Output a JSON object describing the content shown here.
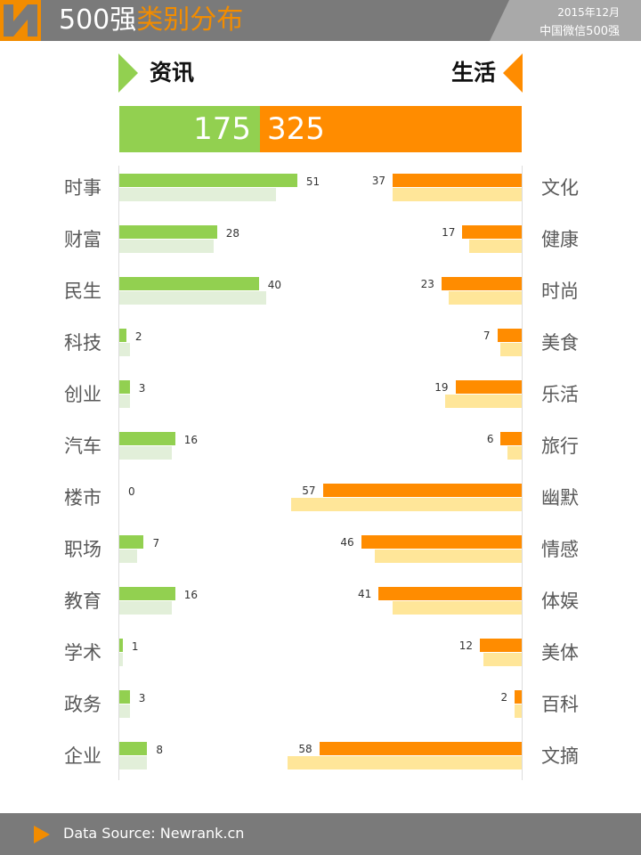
{
  "header": {
    "title_prefix": "500强",
    "title_accent": "类别分布",
    "date": "2015年12月",
    "subtitle": "中国微信500强"
  },
  "colors": {
    "green": "#92d050",
    "green_light": "#e2efd9",
    "orange": "#ff8c00",
    "orange_light": "#ffe699",
    "header_bg": "#7a7a7a",
    "accent": "#f28c00"
  },
  "icons": [
    "logo-icon",
    "triangle-right-icon",
    "triangle-left-icon",
    "play-icon"
  ],
  "footer": {
    "source": "Data Source: Newrank.cn"
  },
  "chart_data": {
    "type": "bar",
    "groups": [
      {
        "name": "资讯",
        "total": "175",
        "categories": [
          "时事",
          "财富",
          "民生",
          "科技",
          "创业",
          "汽车",
          "楼市",
          "职场",
          "教育",
          "学术",
          "政务",
          "企业"
        ],
        "values": [
          51,
          28,
          40,
          2,
          3,
          16,
          0,
          7,
          16,
          1,
          3,
          8
        ],
        "previous_values": [
          45,
          27,
          42,
          3,
          3,
          15,
          0,
          5,
          15,
          1,
          3,
          8
        ]
      },
      {
        "name": "生活",
        "total": "325",
        "categories": [
          "文化",
          "健康",
          "时尚",
          "美食",
          "乐活",
          "旅行",
          "幽默",
          "情感",
          "体娱",
          "美体",
          "百科",
          "文摘"
        ],
        "values": [
          37,
          17,
          23,
          7,
          19,
          6,
          57,
          46,
          41,
          12,
          2,
          58
        ],
        "previous_values": [
          37,
          15,
          21,
          6,
          22,
          4,
          66,
          42,
          37,
          11,
          2,
          67
        ]
      }
    ],
    "totals": [
      175,
      325
    ]
  }
}
